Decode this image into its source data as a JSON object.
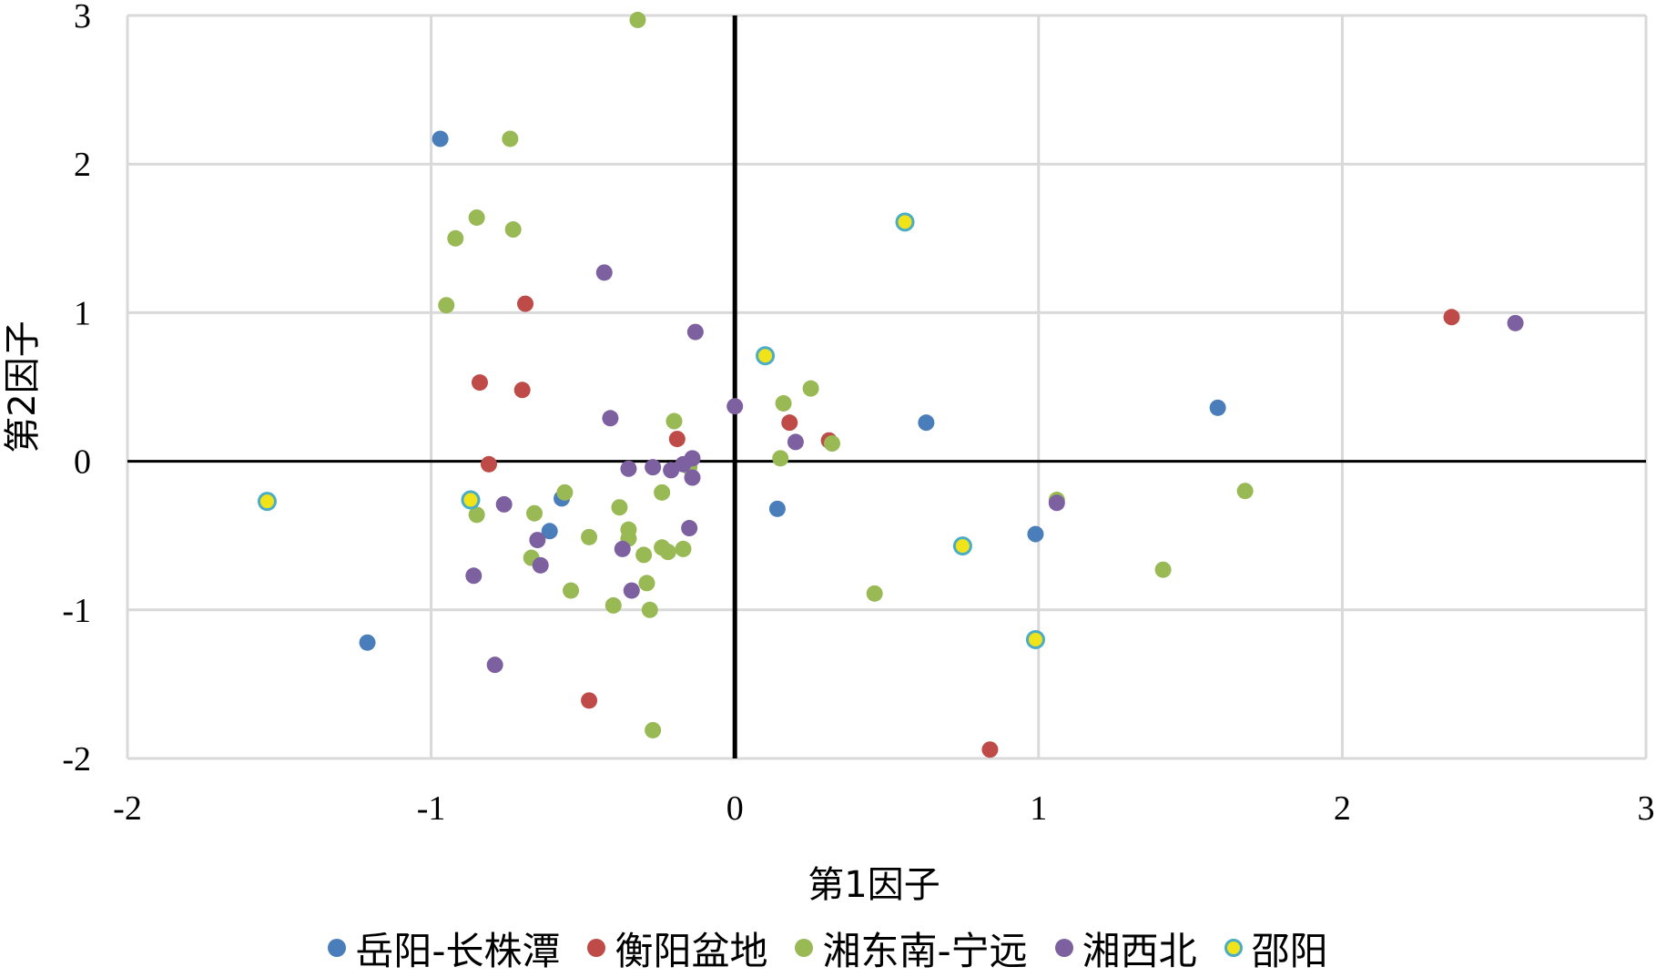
{
  "chart_data": {
    "type": "scatter",
    "xlabel": "第1因子",
    "ylabel": "第2因子",
    "xlim": [
      -2,
      3
    ],
    "ylim": [
      -2,
      3
    ],
    "xticks": [
      "-2",
      "-1",
      "0",
      "1",
      "2",
      "3"
    ],
    "yticks": [
      "-2",
      "-1",
      "0",
      "1",
      "2",
      "3"
    ],
    "grid": true,
    "legend_position": "bottom",
    "series": [
      {
        "name": "岳阳-长株潭",
        "color": "#4a7ebb",
        "points": [
          [
            -0.97,
            2.17
          ],
          [
            -1.21,
            -1.22
          ],
          [
            -0.57,
            -0.25
          ],
          [
            -0.61,
            -0.47
          ],
          [
            0.14,
            -0.32
          ],
          [
            0.63,
            0.26
          ],
          [
            0.99,
            -0.49
          ],
          [
            1.59,
            0.36
          ]
        ]
      },
      {
        "name": "衡阳盆地",
        "color": "#be4b48",
        "points": [
          [
            -0.69,
            1.06
          ],
          [
            -0.84,
            0.53
          ],
          [
            -0.7,
            0.48
          ],
          [
            -0.81,
            -0.02
          ],
          [
            -0.48,
            -1.61
          ],
          [
            -0.19,
            0.15
          ],
          [
            0.18,
            0.26
          ],
          [
            0.31,
            0.14
          ],
          [
            0.84,
            -1.94
          ],
          [
            2.36,
            0.97
          ]
        ]
      },
      {
        "name": "湘东南-宁远",
        "color": "#98b954",
        "points": [
          [
            -0.32,
            2.97
          ],
          [
            -0.74,
            2.17
          ],
          [
            -0.85,
            1.64
          ],
          [
            -0.92,
            1.5
          ],
          [
            -0.73,
            1.56
          ],
          [
            -0.95,
            1.05
          ],
          [
            -0.85,
            -0.36
          ],
          [
            -0.66,
            -0.35
          ],
          [
            -0.56,
            -0.21
          ],
          [
            -0.67,
            -0.65
          ],
          [
            -0.48,
            -0.51
          ],
          [
            -0.54,
            -0.87
          ],
          [
            -0.38,
            -0.31
          ],
          [
            -0.35,
            -0.46
          ],
          [
            -0.35,
            -0.52
          ],
          [
            -0.3,
            -0.63
          ],
          [
            -0.24,
            -0.58
          ],
          [
            -0.22,
            -0.61
          ],
          [
            -0.17,
            -0.59
          ],
          [
            -0.4,
            -0.97
          ],
          [
            -0.29,
            -0.82
          ],
          [
            -0.28,
            -1.0
          ],
          [
            -0.27,
            -1.81
          ],
          [
            -0.2,
            0.27
          ],
          [
            -0.24,
            -0.21
          ],
          [
            -0.15,
            -0.04
          ],
          [
            0.16,
            0.39
          ],
          [
            0.25,
            0.49
          ],
          [
            0.15,
            0.02
          ],
          [
            0.32,
            0.12
          ],
          [
            0.46,
            -0.89
          ],
          [
            1.06,
            -0.26
          ],
          [
            1.41,
            -0.73
          ],
          [
            1.68,
            -0.2
          ]
        ]
      },
      {
        "name": "湘西北",
        "color": "#7d60a0",
        "points": [
          [
            -0.43,
            1.27
          ],
          [
            -0.13,
            0.87
          ],
          [
            -0.41,
            0.29
          ],
          [
            0.0,
            0.37
          ],
          [
            -0.35,
            -0.05
          ],
          [
            -0.27,
            -0.04
          ],
          [
            -0.21,
            -0.06
          ],
          [
            -0.17,
            -0.02
          ],
          [
            -0.14,
            0.02
          ],
          [
            -0.14,
            -0.11
          ],
          [
            -0.76,
            -0.29
          ],
          [
            -0.65,
            -0.53
          ],
          [
            -0.64,
            -0.7
          ],
          [
            -0.86,
            -0.77
          ],
          [
            -0.37,
            -0.59
          ],
          [
            -0.34,
            -0.87
          ],
          [
            -0.15,
            -0.45
          ],
          [
            -0.79,
            -1.37
          ],
          [
            0.2,
            0.13
          ],
          [
            1.06,
            -0.28
          ],
          [
            2.57,
            0.93
          ]
        ]
      },
      {
        "name": "邵阳",
        "color": "#f0e31a",
        "stroke": "#4bacc6",
        "points": [
          [
            -1.54,
            -0.27
          ],
          [
            -0.87,
            -0.26
          ],
          [
            0.1,
            0.71
          ],
          [
            0.56,
            1.61
          ],
          [
            0.75,
            -0.57
          ],
          [
            0.99,
            -1.2
          ]
        ]
      }
    ]
  }
}
